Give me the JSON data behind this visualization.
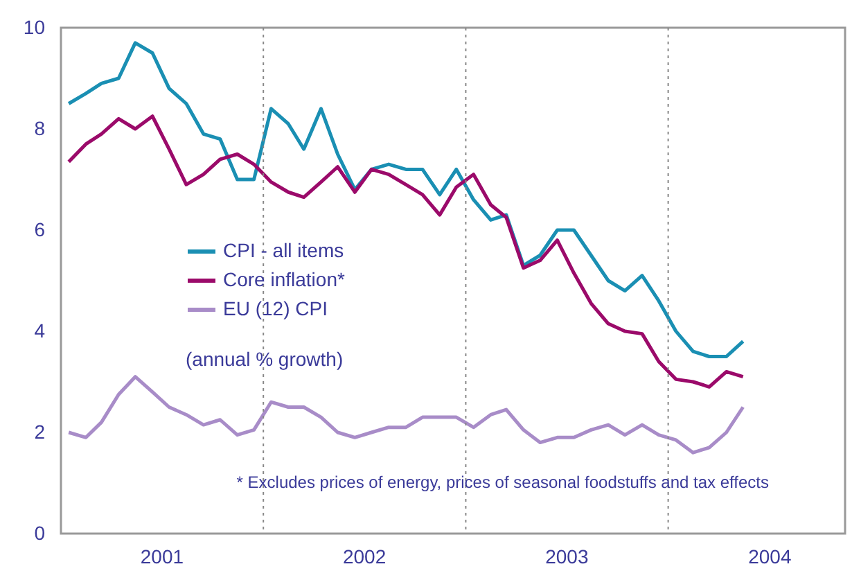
{
  "chart_data": {
    "type": "line",
    "x": [
      "2001-01-15",
      "2001-02-15",
      "2001-03-15",
      "2001-04-15",
      "2001-05-15",
      "2001-06-15",
      "2001-07-15",
      "2001-08-15",
      "2001-09-15",
      "2001-10-15",
      "2001-11-15",
      "2001-12-15",
      "2002-01-15",
      "2002-02-15",
      "2002-03-15",
      "2002-04-15",
      "2002-05-15",
      "2002-06-15",
      "2002-07-15",
      "2002-08-15",
      "2002-09-15",
      "2002-10-15",
      "2002-11-15",
      "2002-12-15",
      "2003-01-15",
      "2003-02-15",
      "2003-03-15",
      "2003-04-15",
      "2003-05-15",
      "2003-06-15",
      "2003-07-15",
      "2003-08-15",
      "2003-09-15",
      "2003-10-15",
      "2003-11-15",
      "2003-12-15",
      "2004-01-15",
      "2004-02-15",
      "2004-03-15",
      "2004-04-15",
      "2004-05-15"
    ],
    "series": [
      {
        "name": "CPI - all items",
        "color": "#1a8fb3",
        "values": [
          8.5,
          8.7,
          8.9,
          9.0,
          9.7,
          9.5,
          8.8,
          8.5,
          7.9,
          7.8,
          7.0,
          7.0,
          8.4,
          8.1,
          7.6,
          8.4,
          7.5,
          6.8,
          7.2,
          7.3,
          7.2,
          7.2,
          6.7,
          7.2,
          6.6,
          6.2,
          6.3,
          5.3,
          5.5,
          6.0,
          6.0,
          5.5,
          5.0,
          4.8,
          5.1,
          4.6,
          4.0,
          3.6,
          3.5,
          3.5,
          3.8
        ]
      },
      {
        "name": "Core inflation*",
        "color": "#9b0a6a",
        "values": [
          7.35,
          7.7,
          7.9,
          8.2,
          8.0,
          8.25,
          7.6,
          6.9,
          7.1,
          7.4,
          7.5,
          7.3,
          6.95,
          6.75,
          6.65,
          6.95,
          7.25,
          6.75,
          7.2,
          7.1,
          6.9,
          6.7,
          6.3,
          6.85,
          7.1,
          6.5,
          6.25,
          5.25,
          5.4,
          5.8,
          5.15,
          4.55,
          4.15,
          4.0,
          3.95,
          3.4,
          3.05,
          3.0,
          2.9,
          3.2,
          3.1
        ]
      },
      {
        "name": "EU (12) CPI",
        "color": "#a88cc8",
        "values": [
          2.0,
          1.9,
          2.2,
          2.75,
          3.1,
          2.8,
          2.5,
          2.35,
          2.15,
          2.25,
          1.95,
          2.05,
          2.6,
          2.5,
          2.5,
          2.3,
          2.0,
          1.9,
          2.0,
          2.1,
          2.1,
          2.3,
          2.3,
          2.3,
          2.1,
          2.35,
          2.45,
          2.05,
          1.8,
          1.9,
          1.9,
          2.05,
          2.15,
          1.95,
          2.15,
          1.95,
          1.85,
          1.6,
          1.7,
          2.0,
          2.5
        ]
      }
    ],
    "xlim": [
      "2001-01-01",
      "2004-11-15"
    ],
    "xticks": [
      {
        "value": "2001-07-01",
        "label": "2001"
      },
      {
        "value": "2002-07-01",
        "label": "2002"
      },
      {
        "value": "2003-07-01",
        "label": "2003"
      },
      {
        "value": "2004-07-01",
        "label": "2004"
      }
    ],
    "ylim": [
      0,
      10
    ],
    "yticks": [
      0,
      2,
      4,
      6,
      8,
      10
    ],
    "ref_lines": [
      {
        "axis": "x",
        "value": "2002-01-01",
        "color": "#888888",
        "line_style": "dotted"
      },
      {
        "axis": "x",
        "value": "2003-01-01",
        "color": "#888888",
        "line_style": "dotted"
      },
      {
        "axis": "x",
        "value": "2004-01-01",
        "color": "#888888",
        "line_style": "dotted"
      }
    ],
    "annotations": [
      "(annual % growth)",
      "* Excludes prices of energy, prices of seasonal foodstuffs and  tax effects"
    ],
    "legend": "left",
    "grid": false,
    "line_style": "solid",
    "marker": "none"
  }
}
